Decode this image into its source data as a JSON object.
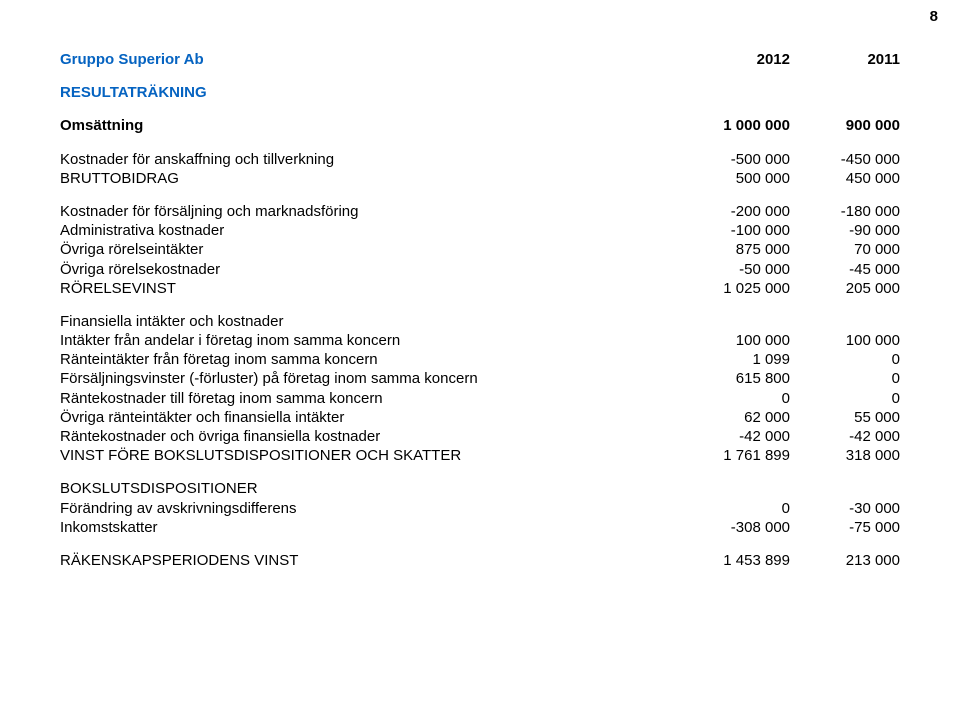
{
  "page_number": "8",
  "header": {
    "company": "Gruppo Superior Ab",
    "year1": "2012",
    "year2": "2011"
  },
  "section_title": "RESULTATRÄKNING",
  "rows": [
    {
      "label": "Omsättning",
      "v1": "1 000 000",
      "v2": "900 000",
      "bold": true
    },
    {
      "gap": true
    },
    {
      "label": "Kostnader för anskaffning och tillverkning",
      "v1": "-500 000",
      "v2": "-450 000"
    },
    {
      "label": "BRUTTOBIDRAG",
      "v1": "500 000",
      "v2": "450 000"
    },
    {
      "gap": true
    },
    {
      "label": "Kostnader för försäljning och marknadsföring",
      "v1": "-200 000",
      "v2": "-180 000"
    },
    {
      "label": "Administrativa kostnader",
      "v1": "-100 000",
      "v2": "-90 000"
    },
    {
      "label": "Övriga rörelseintäkter",
      "v1": "875 000",
      "v2": "70 000"
    },
    {
      "label": "Övriga rörelsekostnader",
      "v1": "-50 000",
      "v2": "-45 000"
    },
    {
      "label": "RÖRELSEVINST",
      "v1": "1 025 000",
      "v2": "205 000"
    },
    {
      "gap": true
    },
    {
      "label": "Finansiella intäkter och kostnader",
      "v1": "",
      "v2": ""
    },
    {
      "label": "Intäkter från andelar i företag inom samma koncern",
      "v1": "100 000",
      "v2": "100 000"
    },
    {
      "label": "Ränteintäkter från företag inom samma koncern",
      "v1": "1 099",
      "v2": "0"
    },
    {
      "label": "Försäljningsvinster (-förluster) på företag inom samma koncern",
      "v1": "615 800",
      "v2": "0"
    },
    {
      "label": "Räntekostnader till företag inom samma koncern",
      "v1": "0",
      "v2": "0"
    },
    {
      "label": "Övriga ränteintäkter och finansiella intäkter",
      "v1": "62 000",
      "v2": "55 000"
    },
    {
      "label": "Räntekostnader och övriga finansiella kostnader",
      "v1": "-42 000",
      "v2": "-42 000"
    },
    {
      "label": "VINST FÖRE BOKSLUTSDISPOSITIONER OCH SKATTER",
      "v1": "1 761 899",
      "v2": "318 000"
    },
    {
      "gap": true
    },
    {
      "label": "BOKSLUTSDISPOSITIONER",
      "v1": "",
      "v2": ""
    },
    {
      "label": "Förändring av avskrivningsdifferens",
      "v1": "0",
      "v2": "-30 000"
    },
    {
      "label": "Inkomstskatter",
      "v1": "-308 000",
      "v2": "-75 000"
    },
    {
      "gap": true
    },
    {
      "label": "RÄKENSKAPSPERIODENS VINST",
      "v1": "1 453 899",
      "v2": "213 000"
    }
  ]
}
